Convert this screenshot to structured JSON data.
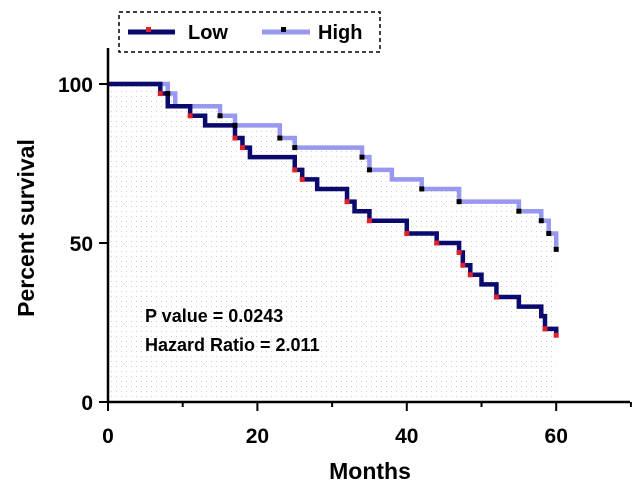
{
  "chart_data": {
    "type": "line",
    "xlabel": "Months",
    "ylabel": "Percent survival",
    "xlim": [
      0,
      70
    ],
    "ylim": [
      0,
      100
    ],
    "x_ticks": [
      "0",
      "20",
      "40",
      "60"
    ],
    "y_ticks": [
      "0",
      "50",
      "100"
    ],
    "grid": false,
    "legend_position": "top",
    "annotations": [
      "P value = 0.0243",
      "Hazard Ratio = 2.011"
    ],
    "series": [
      {
        "name": "Low",
        "color": "#0a0a6e",
        "censor_color": "#e0202a",
        "steps": [
          [
            0,
            100
          ],
          [
            7,
            100
          ],
          [
            7,
            97
          ],
          [
            8,
            97
          ],
          [
            8,
            93
          ],
          [
            11,
            93
          ],
          [
            11,
            90
          ],
          [
            13,
            90
          ],
          [
            13,
            87
          ],
          [
            17,
            87
          ],
          [
            17,
            83
          ],
          [
            18,
            83
          ],
          [
            18,
            80
          ],
          [
            19,
            80
          ],
          [
            19,
            77
          ],
          [
            25,
            77
          ],
          [
            25,
            73
          ],
          [
            26,
            73
          ],
          [
            26,
            70
          ],
          [
            28,
            70
          ],
          [
            28,
            67
          ],
          [
            32,
            67
          ],
          [
            32,
            63
          ],
          [
            33,
            63
          ],
          [
            33,
            60
          ],
          [
            35,
            60
          ],
          [
            35,
            57
          ],
          [
            40,
            57
          ],
          [
            40,
            53
          ],
          [
            44,
            53
          ],
          [
            44,
            50
          ],
          [
            47,
            50
          ],
          [
            47,
            47
          ],
          [
            47.5,
            47
          ],
          [
            47.5,
            43
          ],
          [
            48.5,
            43
          ],
          [
            48.5,
            40
          ],
          [
            50,
            40
          ],
          [
            50,
            37
          ],
          [
            52,
            37
          ],
          [
            52,
            33
          ],
          [
            55,
            33
          ],
          [
            55,
            30
          ],
          [
            58,
            30
          ],
          [
            58,
            27
          ],
          [
            58.5,
            27
          ],
          [
            58.5,
            23
          ],
          [
            60,
            23
          ],
          [
            60,
            21
          ]
        ],
        "censored": [
          [
            7,
            97
          ],
          [
            11,
            90
          ],
          [
            17,
            83
          ],
          [
            18,
            80
          ],
          [
            25,
            73
          ],
          [
            26,
            70
          ],
          [
            32,
            63
          ],
          [
            35,
            57
          ],
          [
            40,
            53
          ],
          [
            44,
            50
          ],
          [
            47,
            47
          ],
          [
            47.5,
            43
          ],
          [
            48.5,
            40
          ],
          [
            52,
            33
          ],
          [
            58.5,
            23
          ],
          [
            60,
            21
          ]
        ]
      },
      {
        "name": "High",
        "color": "#9898f0",
        "censor_color": "#000000",
        "steps": [
          [
            0,
            100
          ],
          [
            8,
            100
          ],
          [
            8,
            97
          ],
          [
            9,
            97
          ],
          [
            9,
            93
          ],
          [
            15,
            93
          ],
          [
            15,
            90
          ],
          [
            17,
            90
          ],
          [
            17,
            87
          ],
          [
            23,
            87
          ],
          [
            23,
            83
          ],
          [
            25,
            83
          ],
          [
            25,
            80
          ],
          [
            34,
            80
          ],
          [
            34,
            77
          ],
          [
            35,
            77
          ],
          [
            35,
            73
          ],
          [
            38,
            73
          ],
          [
            38,
            70
          ],
          [
            42,
            70
          ],
          [
            42,
            67
          ],
          [
            47,
            67
          ],
          [
            47,
            63
          ],
          [
            55,
            63
          ],
          [
            55,
            60
          ],
          [
            58,
            60
          ],
          [
            58,
            57
          ],
          [
            59,
            57
          ],
          [
            59,
            53
          ],
          [
            60,
            53
          ],
          [
            60,
            48
          ]
        ],
        "censored": [
          [
            8,
            97
          ],
          [
            15,
            90
          ],
          [
            17,
            87
          ],
          [
            23,
            83
          ],
          [
            25,
            80
          ],
          [
            34,
            77
          ],
          [
            35,
            73
          ],
          [
            42,
            67
          ],
          [
            47,
            63
          ],
          [
            55,
            60
          ],
          [
            58,
            57
          ],
          [
            59,
            53
          ],
          [
            60,
            48
          ]
        ]
      }
    ]
  }
}
